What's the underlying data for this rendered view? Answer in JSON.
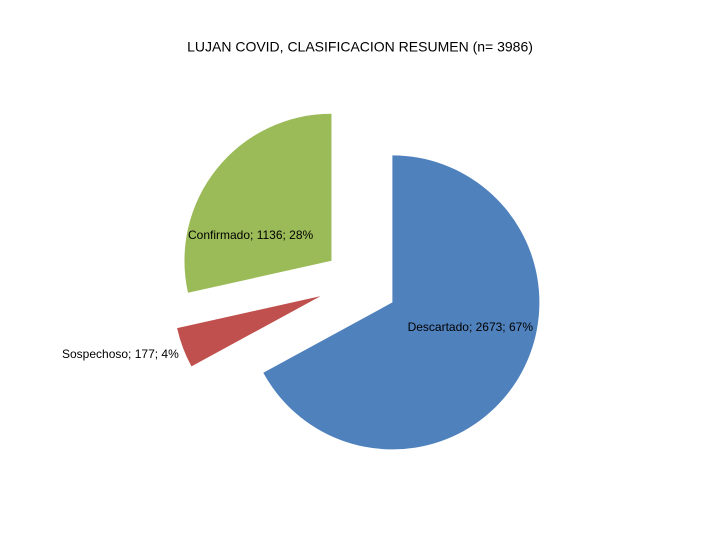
{
  "chart_data": {
    "type": "pie",
    "title": "LUJAN COVID, CLASIFICACION RESUMEN (n= 3986)",
    "categories": [
      "Descartado",
      "Sospechoso",
      "Confirmado"
    ],
    "values": [
      2673,
      177,
      1136
    ],
    "value_labels": [
      "Descartado; 2673; 67%",
      "Sospechoso; 177; 4%",
      "Confirmado; 1136; 28%"
    ],
    "colors": [
      "#4f81bd",
      "#c0504d",
      "#9bbb59"
    ]
  }
}
